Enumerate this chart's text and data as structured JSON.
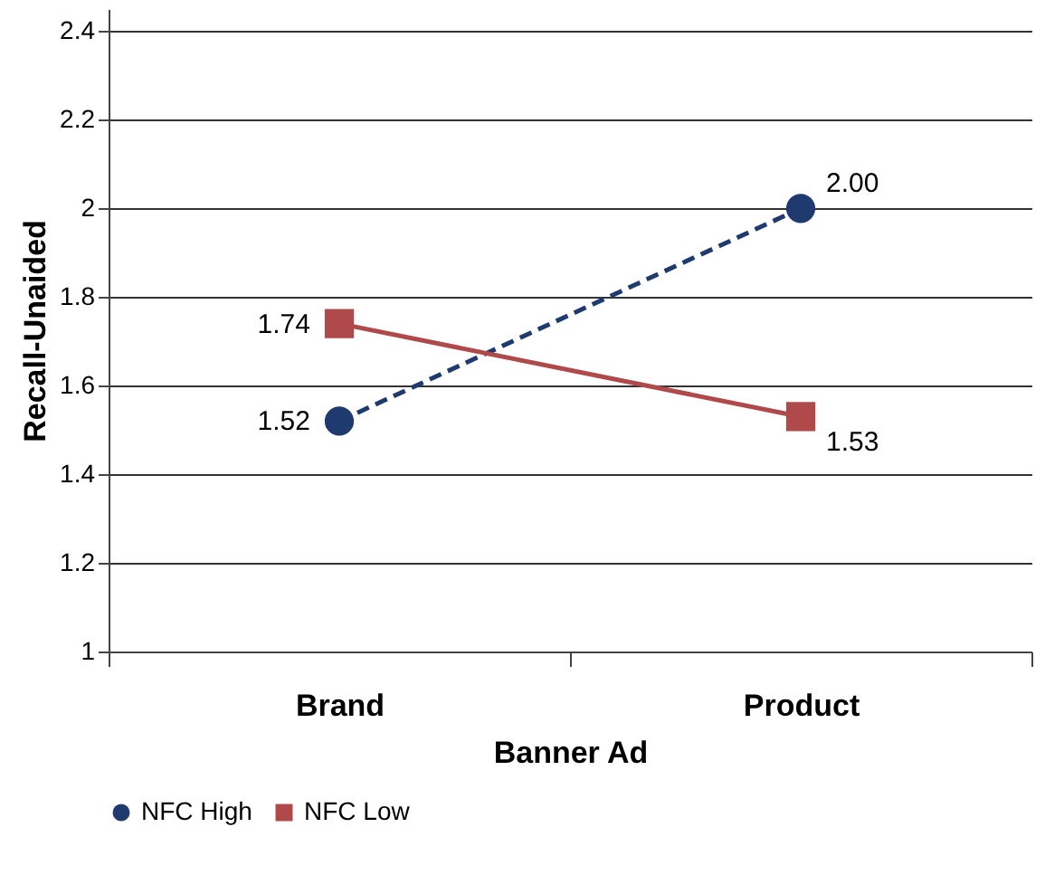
{
  "chart_data": {
    "type": "line",
    "xlabel": "Banner Ad",
    "ylabel": "Recall-Unaided",
    "categories": [
      "Brand",
      "Product"
    ],
    "series": [
      {
        "name": "NFC High",
        "color": "#1f3a6e",
        "values": [
          1.52,
          2.0
        ],
        "value_labels": [
          "1.52",
          "2.00"
        ],
        "line_style": "dashed",
        "marker": "circle"
      },
      {
        "name": "NFC Low",
        "color": "#b04a4a",
        "values": [
          1.74,
          1.53
        ],
        "value_labels": [
          "1.74",
          "1.53"
        ],
        "line_style": "solid",
        "marker": "square"
      }
    ],
    "ylim": [
      1,
      2.45
    ],
    "yticks": [
      1,
      1.2,
      1.4,
      1.6,
      1.8,
      2,
      2.2,
      2.4
    ],
    "grid": "y",
    "legend": "bottom"
  }
}
